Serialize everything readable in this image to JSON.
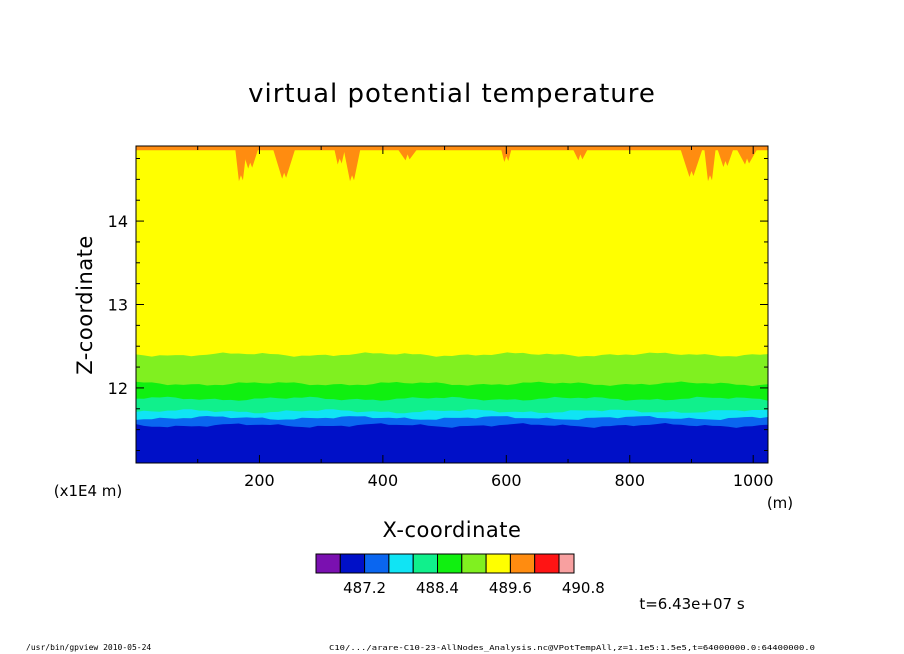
{
  "chart_data": {
    "type": "heatmap",
    "title": "virtual potential temperature",
    "xlabel": "X-coordinate",
    "ylabel": "Z-coordinate",
    "x_unit": "(m)",
    "y_unit": "(x1E4 m)",
    "xlim": [
      0,
      1024
    ],
    "ylim": [
      11.1,
      14.9
    ],
    "x_ticks": [
      200,
      400,
      600,
      800,
      1000
    ],
    "y_ticks": [
      12,
      13,
      14
    ],
    "grid": false,
    "colorbar": {
      "colors": [
        "#7a10b0",
        "#0010c8",
        "#0a66f0",
        "#10e4f4",
        "#10f08c",
        "#10f010",
        "#80f020",
        "#ffff00",
        "#ff8c10",
        "#ff1414",
        "#f8a0a0"
      ],
      "tick_labels": [
        "487.2",
        "488.4",
        "489.6",
        "490.8"
      ]
    },
    "bands": [
      {
        "color": "#0010c8",
        "z_bottom": 11.1,
        "z_top": 11.55
      },
      {
        "color": "#0a66f0",
        "z_bottom": 11.55,
        "z_top": 11.64
      },
      {
        "color": "#10e4f4",
        "z_bottom": 11.64,
        "z_top": 11.72
      },
      {
        "color": "#10f08c",
        "z_bottom": 11.72,
        "z_top": 11.87
      },
      {
        "color": "#10f010",
        "z_bottom": 11.87,
        "z_top": 12.05
      },
      {
        "color": "#80f020",
        "z_bottom": 12.05,
        "z_top": 12.4
      },
      {
        "color": "#ffff00",
        "z_bottom": 12.4,
        "z_top": 14.85
      },
      {
        "color": "#ff8c10",
        "z_bottom": 14.85,
        "z_top": 14.9
      }
    ],
    "annotation": "t=6.43e+07 s"
  },
  "footer": {
    "left": "/usr/bin/gpview  2010-05-24",
    "right": "C10/.../arare-C10-23-AllNodes_Analysis.nc@VPotTempAll,z=1.1e5:1.5e5,t=64000000.0:64400000.0"
  }
}
